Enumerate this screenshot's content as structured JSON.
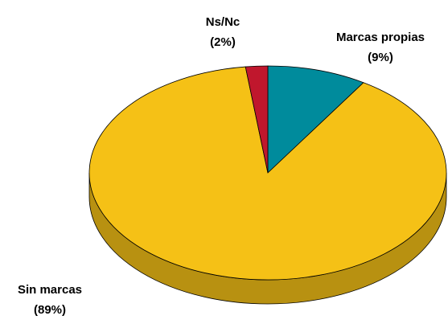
{
  "chart_data": {
    "type": "pie",
    "categories": [
      "Marcas propias",
      "Sin marcas",
      "Ns/Nc"
    ],
    "values": [
      9,
      89,
      2
    ],
    "value_labels": [
      "(9%)",
      "(89%)",
      "(2%)"
    ],
    "colors": [
      "#008b9c",
      "#f5c116",
      "#c0172d"
    ]
  }
}
